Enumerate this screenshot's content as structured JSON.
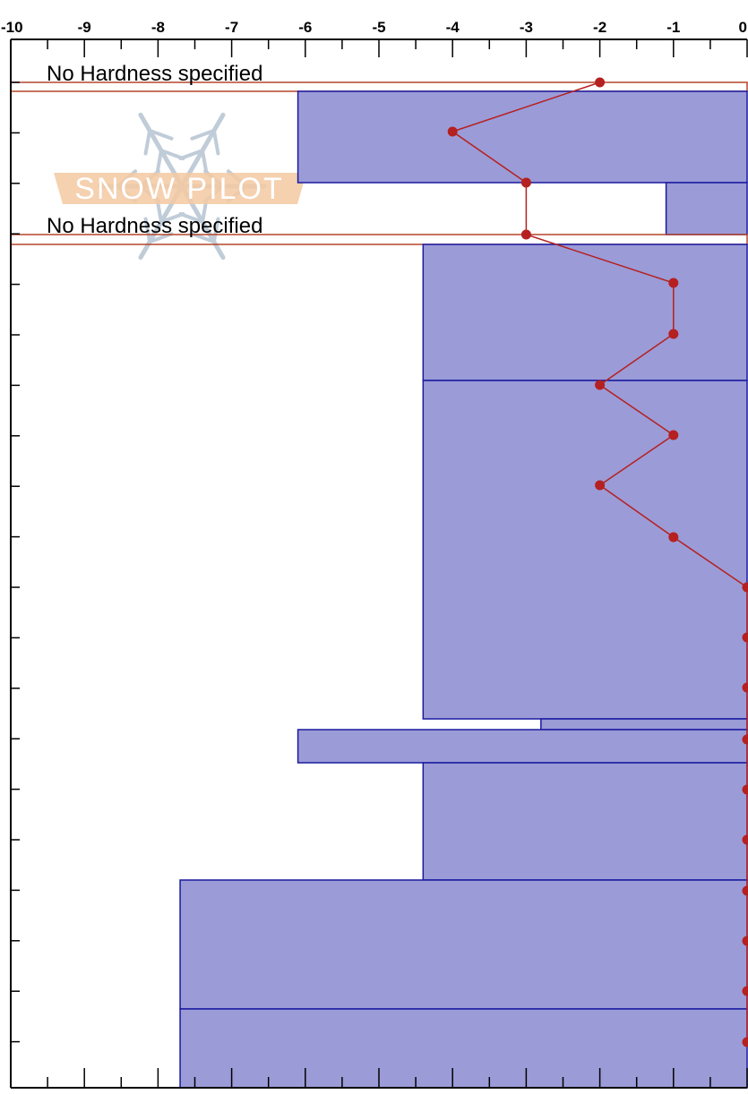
{
  "chart_data": {
    "type": "bar",
    "orientation": "horizontal",
    "x_axis": {
      "range": [
        -10,
        0
      ],
      "tick_labels": [
        "-10",
        "-9",
        "-8",
        "-7",
        "-6",
        "-5",
        "-4",
        "-3",
        "-2",
        "-1",
        "0"
      ]
    },
    "grid": false,
    "hardness_layers": [
      {
        "hardness": null,
        "note": "No Hardness specified"
      },
      {
        "hardness": -6.1
      },
      {
        "hardness": -1.1
      },
      {
        "hardness": null,
        "note": "No Hardness specified"
      },
      {
        "hardness": -4.4
      },
      {
        "hardness": -4.4
      },
      {
        "hardness": -2.8
      },
      {
        "hardness": -6.1
      },
      {
        "hardness": -4.4
      },
      {
        "hardness": -7.7
      },
      {
        "hardness": -7.7
      }
    ],
    "temperature_profile": {
      "values": [
        -2,
        -4,
        -3,
        -3,
        -1,
        -1,
        -2,
        -1,
        -2,
        -1,
        0,
        0,
        0,
        0,
        0,
        0,
        0,
        0,
        0,
        0
      ]
    }
  },
  "watermark": {
    "text": "SNOW PILOT"
  },
  "colors": {
    "layer_fill": "#9b9bd7",
    "layer_stroke": "#1a1aa0",
    "missing_layer_stroke": "#b5452a",
    "temperature": "#b52020",
    "axis": "#000000",
    "logo_banner": "#f3c9a2",
    "logo_flake": "#c0ccd8"
  }
}
